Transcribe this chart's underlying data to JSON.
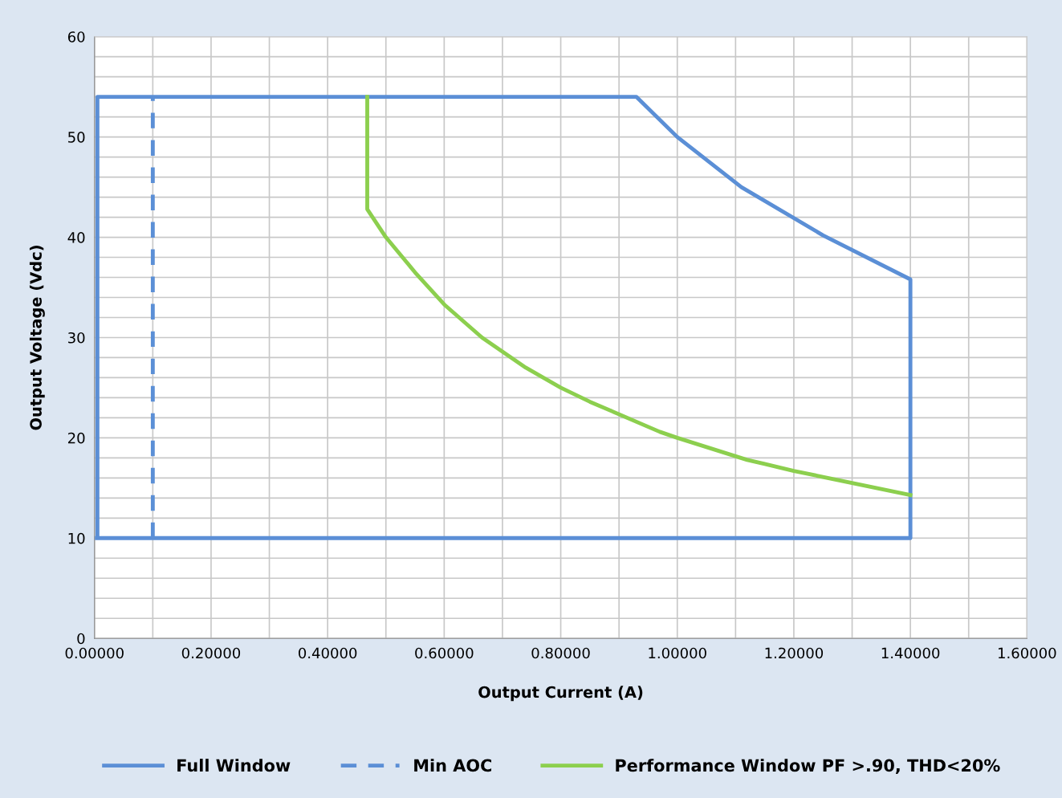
{
  "chart_data": {
    "type": "line",
    "xlabel": "Output Current (A)",
    "ylabel": "Output Voltage (Vdc)",
    "series": [
      {
        "name": "Full Window",
        "color": "#5b8fd6",
        "line_style": "solid",
        "x": [
          0.005,
          0.005,
          0.93,
          1.0,
          1.11,
          1.25,
          1.4,
          1.4,
          0.004
        ],
        "values": [
          10,
          54,
          54,
          50,
          45,
          40.2,
          35.8,
          10,
          10
        ]
      },
      {
        "name": "Min AOC",
        "color": "#5b8fd6",
        "line_style": "dashed",
        "x": [
          0.1,
          0.1
        ],
        "values": [
          10,
          54
        ]
      },
      {
        "name": "Performance Window PF >.90, THD<20%",
        "color": "#8ccf4e",
        "line_style": "solid",
        "x": [
          0.468,
          0.468,
          0.5,
          0.55,
          0.6,
          0.665,
          0.74,
          0.8,
          0.85,
          0.97,
          1.0,
          1.12,
          1.15,
          1.2,
          1.4
        ],
        "values": [
          54,
          42.8,
          40,
          36.5,
          33.3,
          30,
          27,
          25,
          23.6,
          20.6,
          20,
          17.8,
          17.4,
          16.7,
          14.3
        ]
      }
    ],
    "xlim": [
      0,
      1.6
    ],
    "xticks": [
      {
        "value": 0,
        "label": "0.00000"
      },
      {
        "value": 0.1,
        "label": null
      },
      {
        "value": 0.2,
        "label": "0.20000"
      },
      {
        "value": 0.3,
        "label": null
      },
      {
        "value": 0.4,
        "label": "0.40000"
      },
      {
        "value": 0.5,
        "label": null
      },
      {
        "value": 0.6,
        "label": "0.60000"
      },
      {
        "value": 0.7,
        "label": null
      },
      {
        "value": 0.8,
        "label": "0.80000"
      },
      {
        "value": 0.9,
        "label": null
      },
      {
        "value": 1.0,
        "label": "1.00000"
      },
      {
        "value": 1.1,
        "label": null
      },
      {
        "value": 1.2,
        "label": "1.20000"
      },
      {
        "value": 1.3,
        "label": null
      },
      {
        "value": 1.4,
        "label": "1.40000"
      },
      {
        "value": 1.5,
        "label": null
      },
      {
        "value": 1.6,
        "label": "1.60000"
      }
    ],
    "ylim": [
      0,
      60
    ],
    "yticks": [
      0,
      {
        "value": 2,
        "label": null
      },
      {
        "value": 4,
        "label": null
      },
      {
        "value": 6,
        "label": null
      },
      {
        "value": 8,
        "label": null
      },
      10,
      {
        "value": 12,
        "label": null
      },
      {
        "value": 14,
        "label": null
      },
      {
        "value": 16,
        "label": null
      },
      {
        "value": 18,
        "label": null
      },
      20,
      {
        "value": 22,
        "label": null
      },
      {
        "value": 24,
        "label": null
      },
      {
        "value": 26,
        "label": null
      },
      {
        "value": 28,
        "label": null
      },
      30,
      {
        "value": 32,
        "label": null
      },
      {
        "value": 34,
        "label": null
      },
      {
        "value": 36,
        "label": null
      },
      {
        "value": 38,
        "label": null
      },
      40,
      {
        "value": 42,
        "label": null
      },
      {
        "value": 44,
        "label": null
      },
      {
        "value": 46,
        "label": null
      },
      {
        "value": 48,
        "label": null
      },
      50,
      {
        "value": 52,
        "label": null
      },
      {
        "value": 54,
        "label": null
      },
      {
        "value": 56,
        "label": null
      },
      {
        "value": 58,
        "label": null
      },
      60
    ],
    "grid": true,
    "legend": "bottom",
    "marker": "none"
  }
}
